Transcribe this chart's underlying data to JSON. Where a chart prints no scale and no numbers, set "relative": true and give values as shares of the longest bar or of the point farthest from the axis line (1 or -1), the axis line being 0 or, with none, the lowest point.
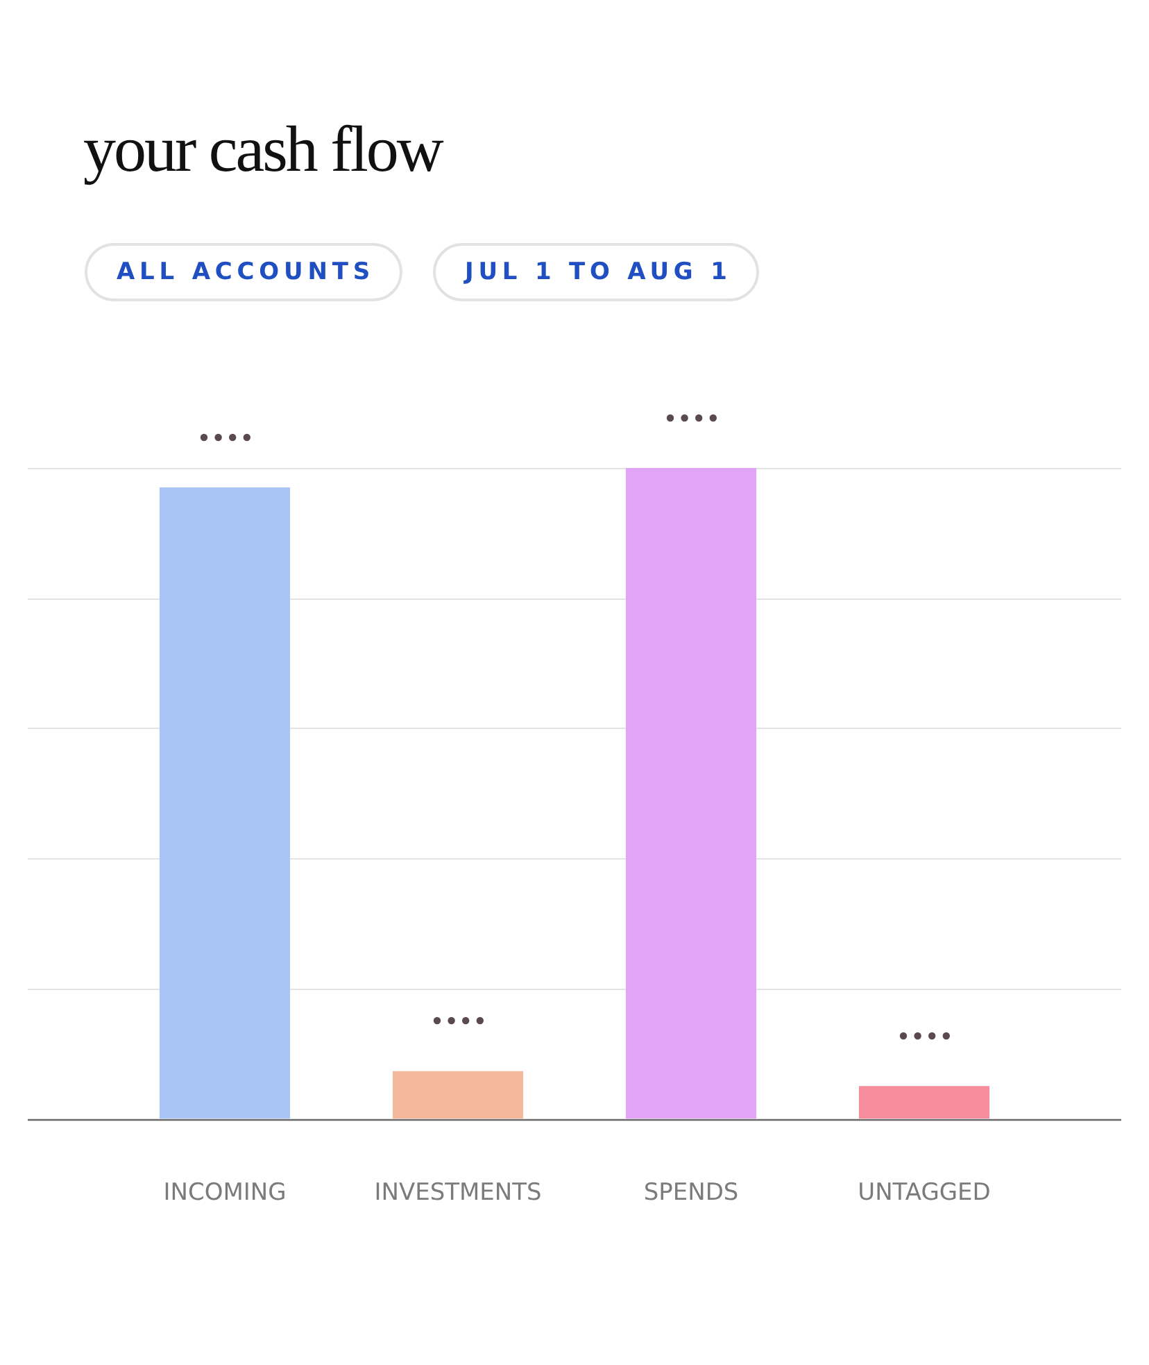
{
  "chart_data": {
    "type": "bar",
    "title": "your cash flow",
    "annotations": [
      "ALL ACCOUNTS",
      "JUL 1 TO AUG 1"
    ],
    "categories": [
      "INCOMING",
      "INVESTMENTS",
      "SPENDS",
      "UNTAGGED"
    ],
    "values": [
      0.97,
      0.073,
      1,
      0.05
    ],
    "colors": [
      "#a9c5f7",
      "#f4b89c",
      "#e2a4f6",
      "#f78c9c"
    ],
    "relative": true,
    "grid": true
  }
}
